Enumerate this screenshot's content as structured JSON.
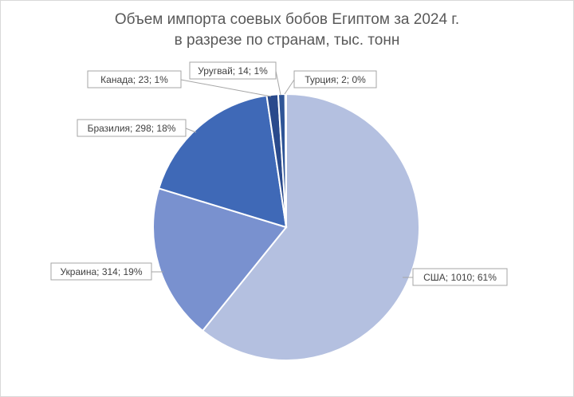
{
  "chart_data": {
    "type": "pie",
    "title": [
      "Объем импорта соевых бобов Египтом за 2024 г.",
      "в разрезе по странам, тыс. тонн"
    ],
    "slices": [
      {
        "name": "США",
        "value": 1010,
        "percent": 61,
        "label": "США; 1010; 61%",
        "color": "#b4c0e0"
      },
      {
        "name": "Украина",
        "value": 314,
        "percent": 19,
        "label": "Украина; 314; 19%",
        "color": "#7991cf"
      },
      {
        "name": "Бразилия",
        "value": 298,
        "percent": 18,
        "label": "Бразилия; 298; 18%",
        "color": "#3f69b7"
      },
      {
        "name": "Канада",
        "value": 23,
        "percent": 1,
        "label": "Канада; 23; 1%",
        "color": "#2a4a8c"
      },
      {
        "name": "Уругвай",
        "value": 14,
        "percent": 1,
        "label": "Уругвай; 14; 1%",
        "color": "#2f5597"
      },
      {
        "name": "Турция",
        "value": 2,
        "percent": 0,
        "label": "Турция; 2; 0%",
        "color": "#1f3864"
      }
    ]
  }
}
